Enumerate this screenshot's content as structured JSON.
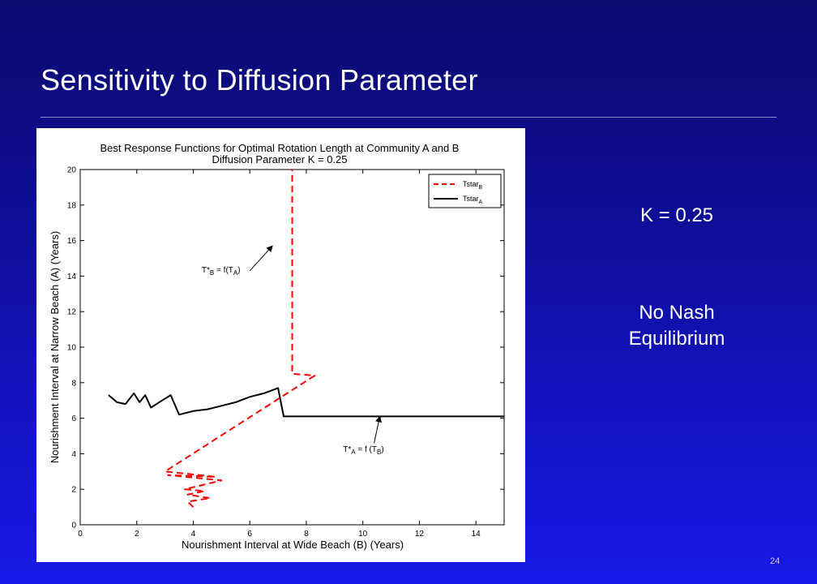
{
  "slide": {
    "title": "Sensitivity to Diffusion Parameter",
    "k_note": "K = 0.25",
    "nash_note": "No Nash Equilibrium",
    "page_number": "24"
  },
  "colors": {
    "series_b": "#ff0000",
    "series_a": "#000000"
  },
  "chart_data": {
    "type": "line",
    "title": "Best Response Functions for Optimal Rotation Length at Community A and B",
    "subtitle": "Diffusion Parameter K = 0.25",
    "xlabel": "Nourishment Interval at Wide Beach (B) (Years)",
    "ylabel": "Nourishment Interval at Narrow Beach (A) (Years)",
    "xlim": [
      0,
      15
    ],
    "ylim": [
      0,
      20
    ],
    "xticks": [
      0,
      2,
      4,
      6,
      8,
      10,
      12,
      14
    ],
    "yticks": [
      0,
      2,
      4,
      6,
      8,
      10,
      12,
      14,
      16,
      18,
      20
    ],
    "grid": false,
    "legend_position": "top-right",
    "series": [
      {
        "name": "Tstar_B",
        "legend_main": "Tstar",
        "legend_sub": "B",
        "style": "dashed",
        "color_key": "series_b",
        "x": [
          4.0,
          3.8,
          4.6,
          3.8,
          4.4,
          3.7,
          5.0,
          3.1,
          4.8,
          3.0,
          8.3,
          7.5,
          7.5
        ],
        "y": [
          1.0,
          1.3,
          1.5,
          1.7,
          1.9,
          2.0,
          2.5,
          2.8,
          2.7,
          3.0,
          8.4,
          8.5,
          20.0
        ]
      },
      {
        "name": "Tstar_A",
        "legend_main": "Tstar",
        "legend_sub": "A",
        "style": "solid",
        "color_key": "series_a",
        "x": [
          1.0,
          1.3,
          1.6,
          1.9,
          2.1,
          2.3,
          2.5,
          2.9,
          3.2,
          3.5,
          4.0,
          4.5,
          5.0,
          5.5,
          6.0,
          6.5,
          7.0,
          7.2,
          15.0
        ],
        "y": [
          7.3,
          6.9,
          6.8,
          7.4,
          6.9,
          7.3,
          6.6,
          7.0,
          7.3,
          6.2,
          6.4,
          6.5,
          6.7,
          6.9,
          7.2,
          7.4,
          7.7,
          6.1,
          6.1
        ]
      }
    ],
    "annotations": [
      {
        "main": "T*",
        "sub": "B",
        "tail": " = f(T",
        "sub2": "A",
        "end": ")",
        "text_at": [
          4.3,
          14.2
        ],
        "arrow_from": [
          6.0,
          14.3
        ],
        "arrow_to": [
          6.8,
          15.7
        ]
      },
      {
        "main": "T*",
        "sub": "A",
        "tail": " = f (T",
        "sub2": "B",
        "end": ")",
        "text_at": [
          9.3,
          4.1
        ],
        "arrow_from": [
          10.4,
          4.6
        ],
        "arrow_to": [
          10.6,
          6.1
        ]
      }
    ]
  }
}
